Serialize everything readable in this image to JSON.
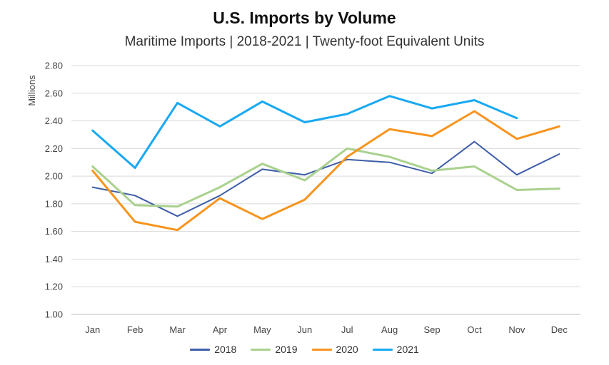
{
  "chart_data": {
    "type": "line",
    "title": "U.S. Imports by Volume",
    "subtitle": "Maritime Imports | 2018-2021 | Twenty-foot Equivalent Units",
    "ylabel": "Millions",
    "xlabel": "",
    "categories": [
      "Jan",
      "Feb",
      "Mar",
      "Apr",
      "May",
      "Jun",
      "Jul",
      "Aug",
      "Sep",
      "Oct",
      "Nov",
      "Dec"
    ],
    "ylim": [
      1.0,
      2.8
    ],
    "yticks": [
      "1.00",
      "1.20",
      "1.40",
      "1.60",
      "1.80",
      "2.00",
      "2.20",
      "2.40",
      "2.60",
      "2.80"
    ],
    "grid": true,
    "legend_position": "bottom",
    "series": [
      {
        "name": "2018",
        "color": "#3e5da8",
        "values": [
          1.92,
          1.86,
          1.71,
          1.86,
          2.05,
          2.01,
          2.12,
          2.1,
          2.02,
          2.25,
          2.01,
          2.16
        ]
      },
      {
        "name": "2019",
        "color": "#a9d18e",
        "values": [
          2.07,
          1.79,
          1.78,
          1.92,
          2.09,
          1.97,
          2.2,
          2.14,
          2.04,
          2.07,
          1.9,
          1.91
        ]
      },
      {
        "name": "2020",
        "color": "#f7941d",
        "values": [
          2.04,
          1.67,
          1.61,
          1.84,
          1.69,
          1.83,
          2.14,
          2.34,
          2.29,
          2.47,
          2.27,
          2.36
        ]
      },
      {
        "name": "2021",
        "color": "#18a9f2",
        "values": [
          2.33,
          2.06,
          2.53,
          2.36,
          2.54,
          2.39,
          2.45,
          2.58,
          2.49,
          2.55,
          2.42,
          null
        ]
      }
    ]
  }
}
